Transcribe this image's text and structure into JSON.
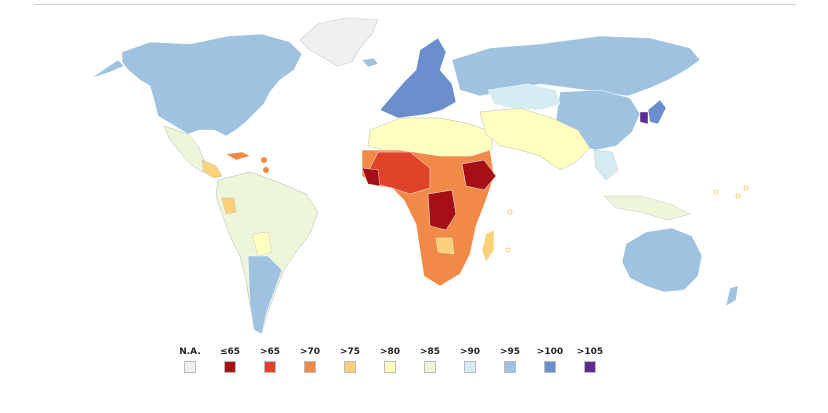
{
  "legend": {
    "items": [
      {
        "label": "N.A.",
        "color": "#f0f0f0"
      },
      {
        "label": "≤65",
        "color": "#a50f15"
      },
      {
        "label": ">65",
        "color": "#e0422a"
      },
      {
        "label": ">70",
        "color": "#f28a47"
      },
      {
        "label": ">75",
        "color": "#fdd07a"
      },
      {
        "label": ">80",
        "color": "#ffffbf"
      },
      {
        "label": ">85",
        "color": "#edf6d9"
      },
      {
        "label": ">90",
        "color": "#d4ecf2"
      },
      {
        "label": ">95",
        "color": "#9ec2e0"
      },
      {
        "label": ">100",
        "color": "#6a8fcc"
      },
      {
        "label": ">105",
        "color": "#5b2c91"
      }
    ]
  }
}
